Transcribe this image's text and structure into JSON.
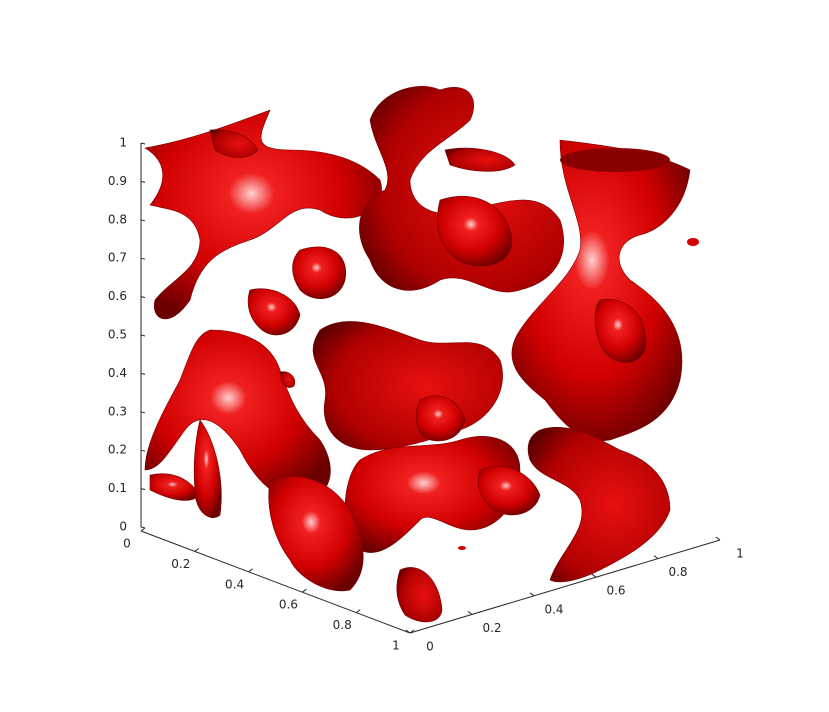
{
  "chart_data": {
    "type": "isosurface",
    "color": "#d40000",
    "xlim": [
      0,
      1
    ],
    "xticks": [
      0,
      0.2,
      0.4,
      0.6,
      0.8,
      1
    ],
    "ylim": [
      0,
      1
    ],
    "yticks": [
      0,
      0.2,
      0.4,
      0.6,
      0.8,
      1
    ],
    "zlim": [
      0,
      1
    ],
    "zticks": [
      0,
      0.1,
      0.2,
      0.3,
      0.4,
      0.5,
      0.6,
      0.7,
      0.8,
      0.9,
      1
    ]
  }
}
